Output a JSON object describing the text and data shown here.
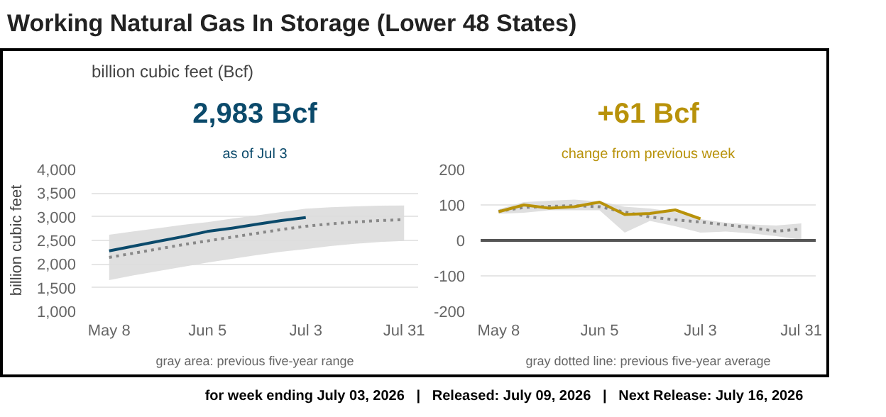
{
  "chart_data": [
    {
      "type": "line",
      "title": "2,983 Bcf",
      "subtitle": "as of Jul 3",
      "ylabel": "billion cubic feet",
      "annotations": [
        "Working Natural Gas In Storage (Lower 48 States)",
        "billion cubic feet (Bcf)",
        "gray area: previous five-year range",
        "for week ending July 03, 2026   |   Released: July 09, 2026   |   Next Release: July 16, 2026"
      ],
      "x": [
        "2026-05-08",
        "2026-05-15",
        "2026-05-22",
        "2026-05-29",
        "2026-06-05",
        "2026-06-12",
        "2026-06-19",
        "2026-06-26",
        "2026-07-03",
        "2026-07-10",
        "2026-07-17",
        "2026-07-24",
        "2026-07-31"
      ],
      "series": [
        {
          "color": "#888888",
          "line_style": "dotted",
          "values": [
            2140,
            2230,
            2320,
            2410,
            2490,
            2570,
            2650,
            2730,
            2800,
            2850,
            2890,
            2920,
            2940
          ],
          "lower": [
            1660,
            1760,
            1850,
            1940,
            2030,
            2110,
            2190,
            2260,
            2315,
            2380,
            2430,
            2465,
            2490
          ],
          "upper": [
            2620,
            2690,
            2760,
            2830,
            2885,
            2960,
            3030,
            3100,
            3170,
            3200,
            3220,
            3235,
            3240
          ]
        },
        {
          "color": "#0b4a6b",
          "line_style": "solid",
          "values": [
            2280,
            2380,
            2480,
            2580,
            2690,
            2760,
            2840,
            2920,
            2983,
            null,
            null,
            null,
            null
          ]
        }
      ],
      "xlim": [
        "2026-05-03",
        "2026-08-04"
      ],
      "ylim": [
        1000,
        4000
      ],
      "xticks": [
        {
          "value": "2026-05-08",
          "label": "May 8"
        },
        {
          "value": "2026-06-05",
          "label": "Jun 5"
        },
        {
          "value": "2026-07-03",
          "label": "Jul 3"
        },
        {
          "value": "2026-07-31",
          "label": "Jul 31"
        }
      ],
      "yticks": [
        {
          "value": 1000,
          "label": "1,000"
        },
        {
          "value": 1500,
          "label": "1,500"
        },
        {
          "value": 2000,
          "label": "2,000"
        },
        {
          "value": 2500,
          "label": "2,500"
        },
        {
          "value": 3000,
          "label": "3,000"
        },
        {
          "value": 3500,
          "label": "3,500"
        },
        {
          "value": 4000,
          "label": "4,000"
        }
      ],
      "grid": "y"
    },
    {
      "type": "line",
      "title": "+61 Bcf",
      "subtitle": "change from previous week",
      "annotations": [
        "gray dotted line: previous five-year average"
      ],
      "x": [
        "2026-05-08",
        "2026-05-15",
        "2026-05-22",
        "2026-05-29",
        "2026-06-05",
        "2026-06-12",
        "2026-06-19",
        "2026-06-26",
        "2026-07-03",
        "2026-07-10",
        "2026-07-17",
        "2026-07-24",
        "2026-07-31"
      ],
      "series": [
        {
          "color": "#888888",
          "line_style": "dotted",
          "values": [
            82,
            93,
            96,
            98,
            95,
            80,
            66,
            58,
            52,
            44,
            36,
            26,
            32
          ],
          "lower": [
            75,
            78,
            85,
            85,
            85,
            22,
            55,
            40,
            22,
            25,
            20,
            12,
            2
          ],
          "upper": [
            88,
            108,
            112,
            115,
            110,
            95,
            90,
            80,
            60,
            50,
            45,
            42,
            48
          ]
        },
        {
          "color": "#b8920a",
          "line_style": "solid",
          "values": [
            81,
            100,
            91,
            95,
            108,
            73,
            76,
            86,
            61,
            null,
            null,
            null,
            null
          ]
        }
      ],
      "xlim": [
        "2026-05-03",
        "2026-08-04"
      ],
      "ylim": [
        -200,
        200
      ],
      "xticks": [
        {
          "value": "2026-05-08",
          "label": "May 8"
        },
        {
          "value": "2026-06-05",
          "label": "Jun 5"
        },
        {
          "value": "2026-07-03",
          "label": "Jul 3"
        },
        {
          "value": "2026-07-31",
          "label": "Jul 31"
        }
      ],
      "yticks": [
        -200,
        -100,
        0,
        100,
        200
      ],
      "ref_lines": [
        {
          "axis": "y",
          "value": 0,
          "color": "#555555"
        }
      ],
      "grid": "y"
    }
  ]
}
